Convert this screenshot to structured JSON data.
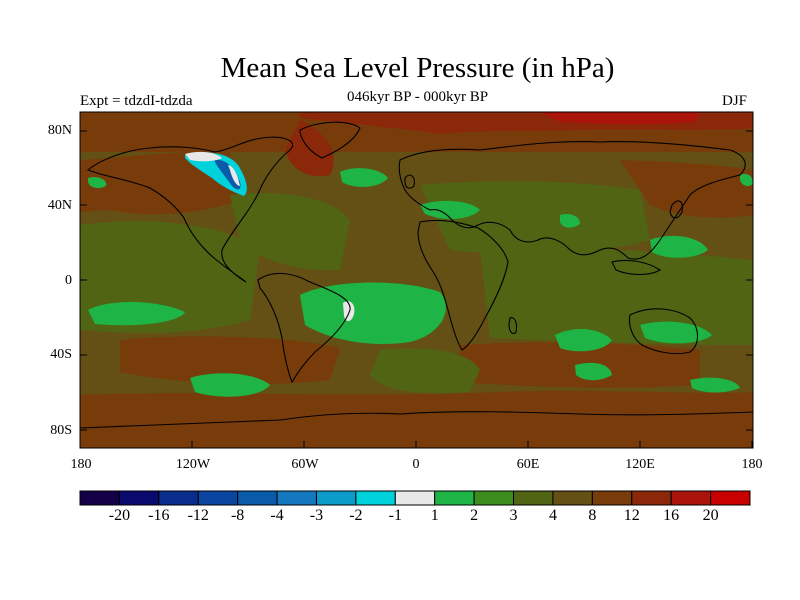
{
  "title": "Mean Sea Level Pressure (in hPa)",
  "subtitle": "046kyr BP - 000kyr BP",
  "experiment": "Expt = tdzdI-tdzda",
  "season": "DJF",
  "lat_labels": [
    "80N",
    "40N",
    "0",
    "40S",
    "80S"
  ],
  "lon_labels": [
    "180",
    "120W",
    "60W",
    "0",
    "60E",
    "120E",
    "180"
  ],
  "colorbar": {
    "labels": [
      "-20",
      "-16",
      "-12",
      "-8",
      "-4",
      "-3",
      "-2",
      "-1",
      "1",
      "2",
      "3",
      "4",
      "8",
      "12",
      "16",
      "20"
    ],
    "colors": [
      "#140046",
      "#0a0a6e",
      "#082d8c",
      "#0a46a0",
      "#0a5aaa",
      "#1478be",
      "#0a9bc8",
      "#00d2dc",
      "#e8e8e8",
      "#1eb446",
      "#3c8c1e",
      "#506414",
      "#645014",
      "#783c0a",
      "#8c280a",
      "#aa140a",
      "#c80000"
    ]
  },
  "palette": {
    "background_land": "#645014",
    "warm": "#783c0a",
    "hot": "#8c280a",
    "green": "#1eb446",
    "olive": "#506414",
    "coastline": "#000000"
  }
}
